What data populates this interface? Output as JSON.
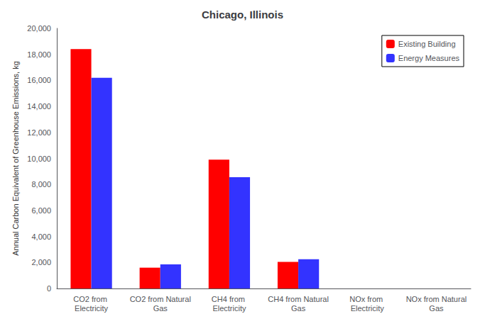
{
  "chart_data": {
    "type": "bar",
    "title": "Chicago, Illinois",
    "ylabel": "Annual Carbon Equivalent of Greenhouse Emissions, kg",
    "categories": [
      "CO2 from Electricity",
      "CO2 from Natural\nGas",
      "CH4 from Electricity",
      "CH4 from Natural\nGas",
      "NOx from Electricity",
      "NOx from Natural\nGas"
    ],
    "series": [
      {
        "name": "Existing Building",
        "color": "#ff0000",
        "values": [
          18400,
          1600,
          9900,
          2050,
          0,
          0
        ]
      },
      {
        "name": "Energy Measures",
        "color": "#3333ff",
        "values": [
          16200,
          1850,
          8550,
          2250,
          0,
          0
        ]
      }
    ],
    "ylim": [
      0,
      20000
    ],
    "yticks": [
      0,
      {
        "value": 2000,
        "label": "2,000"
      },
      {
        "value": 4000,
        "label": "4,000"
      },
      {
        "value": 6000,
        "label": "6,000"
      },
      {
        "value": 8000,
        "label": "8,000"
      },
      {
        "value": 10000,
        "label": "10,000"
      },
      {
        "value": 12000,
        "label": "12,000"
      },
      {
        "value": 14000,
        "label": "14,000"
      },
      {
        "value": 16000,
        "label": "16,000"
      },
      {
        "value": 18000,
        "label": "18,000"
      },
      {
        "value": 20000,
        "label": "20,000"
      }
    ],
    "grid": false,
    "legend": "upper right"
  }
}
